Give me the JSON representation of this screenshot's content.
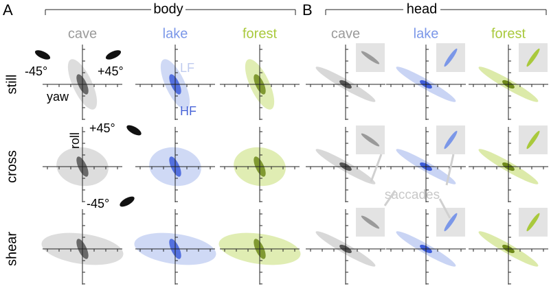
{
  "panels": {
    "A": {
      "label": "A",
      "title": "body",
      "columns": [
        "cave",
        "lake",
        "forest"
      ]
    },
    "B": {
      "label": "B",
      "title": "head",
      "columns": [
        "cave",
        "lake",
        "forest"
      ]
    }
  },
  "rows": [
    "still",
    "cross",
    "shear"
  ],
  "annotations": {
    "yaw_neg": "-45°",
    "yaw_pos": "+45°",
    "yaw": "yaw",
    "roll": "roll",
    "roll_pos": "+45°",
    "roll_neg": "-45°",
    "lf": "LF",
    "hf": "HF",
    "saccades": "saccades"
  }
}
